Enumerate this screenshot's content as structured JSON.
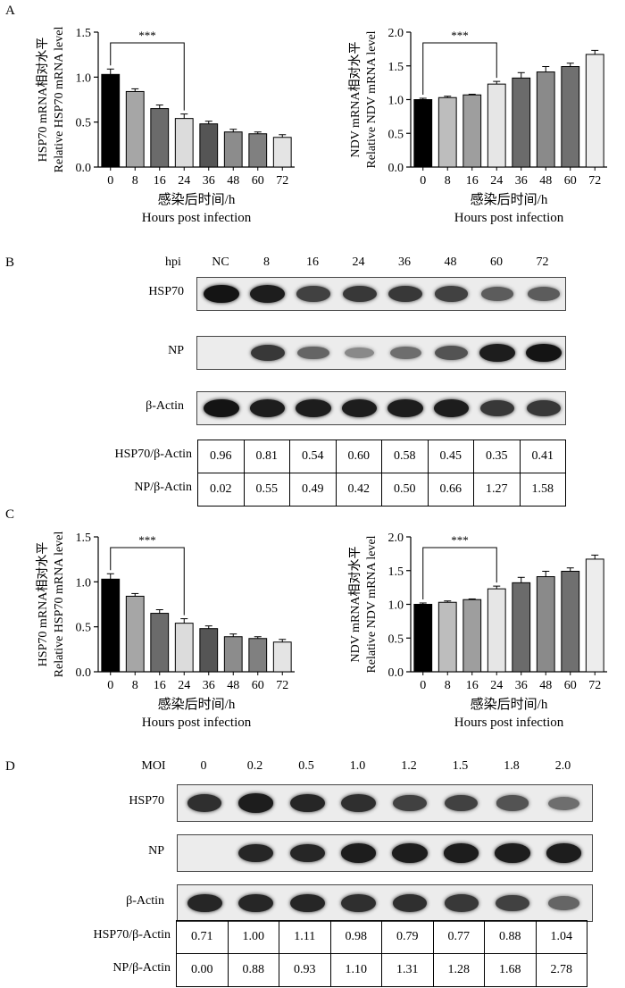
{
  "panels": {
    "A": "A",
    "B": "B",
    "C": "C",
    "D": "D"
  },
  "chart_data": [
    {
      "type": "bar",
      "panel": "A",
      "categories": [
        "0",
        "8",
        "16",
        "24",
        "36",
        "48",
        "60",
        "72"
      ],
      "values": [
        1.03,
        0.84,
        0.65,
        0.54,
        0.48,
        0.39,
        0.37,
        0.33
      ],
      "errors": [
        0.06,
        0.03,
        0.04,
        0.05,
        0.03,
        0.03,
        0.02,
        0.03
      ],
      "ylabel_cn": "HSP70 mRNA相对水平",
      "ylabel_en": "Relative HSP70 mRNA level",
      "xlabel_cn": "感染后时间/h",
      "xlabel_en": "Hours post infection",
      "ylim": [
        0,
        1.5
      ],
      "yticks": [
        "0.0",
        "0.5",
        "1.0",
        "1.5"
      ],
      "significance": "***",
      "colors": [
        "#000000",
        "#a6a6a6",
        "#6b6b6b",
        "#dcdcdc",
        "#555555",
        "#8c8c8c",
        "#808080",
        "#e4e4e4"
      ]
    },
    {
      "type": "bar",
      "panel": "A",
      "categories": [
        "0",
        "8",
        "16",
        "24",
        "36",
        "48",
        "60",
        "72"
      ],
      "values": [
        1.0,
        1.03,
        1.07,
        1.23,
        1.32,
        1.41,
        1.49,
        1.67
      ],
      "errors": [
        0.02,
        0.02,
        0.01,
        0.04,
        0.08,
        0.08,
        0.05,
        0.06
      ],
      "ylabel_cn": "NDV mRNA相对水平",
      "ylabel_en": "Relative NDV mRNA level",
      "xlabel_cn": "感染后时间/h",
      "xlabel_en": "Hours post infection",
      "ylim": [
        0,
        2.0
      ],
      "yticks": [
        "0.0",
        "0.5",
        "1.0",
        "1.5",
        "2.0"
      ],
      "significance": "***",
      "colors": [
        "#000000",
        "#bdbdbd",
        "#9e9e9e",
        "#e6e6e6",
        "#6b6b6b",
        "#8a8a8a",
        "#707070",
        "#ededed"
      ]
    },
    {
      "type": "bar",
      "panel": "C",
      "categories": [
        "0",
        "8",
        "16",
        "24",
        "36",
        "48",
        "60",
        "72"
      ],
      "values": [
        1.03,
        0.84,
        0.65,
        0.54,
        0.48,
        0.39,
        0.37,
        0.33
      ],
      "errors": [
        0.06,
        0.03,
        0.04,
        0.05,
        0.03,
        0.03,
        0.02,
        0.03
      ],
      "ylabel_cn": "HSP70 mRNA相对水平",
      "ylabel_en": "Relative HSP70 mRNA level",
      "xlabel_cn": "感染后时间/h",
      "xlabel_en": "Hours post infection",
      "ylim": [
        0,
        1.5
      ],
      "yticks": [
        "0.0",
        "0.5",
        "1.0",
        "1.5"
      ],
      "significance": "***",
      "colors": [
        "#000000",
        "#a6a6a6",
        "#6b6b6b",
        "#dcdcdc",
        "#555555",
        "#8c8c8c",
        "#808080",
        "#e4e4e4"
      ]
    },
    {
      "type": "bar",
      "panel": "C",
      "categories": [
        "0",
        "8",
        "16",
        "24",
        "36",
        "48",
        "60",
        "72"
      ],
      "values": [
        1.0,
        1.03,
        1.07,
        1.23,
        1.32,
        1.41,
        1.49,
        1.67
      ],
      "errors": [
        0.02,
        0.02,
        0.01,
        0.04,
        0.08,
        0.08,
        0.05,
        0.06
      ],
      "ylabel_cn": "NDV mRNA相对水平",
      "ylabel_en": "Relative NDV mRNA level",
      "xlabel_cn": "感染后时间/h",
      "xlabel_en": "Hours post infection",
      "ylim": [
        0,
        2.0
      ],
      "yticks": [
        "0.0",
        "0.5",
        "1.0",
        "1.5",
        "2.0"
      ],
      "significance": "***",
      "colors": [
        "#000000",
        "#bdbdbd",
        "#9e9e9e",
        "#e6e6e6",
        "#6b6b6b",
        "#8a8a8a",
        "#707070",
        "#ededed"
      ]
    }
  ],
  "blotB": {
    "header_label": "hpi",
    "lanes": [
      "NC",
      "8",
      "16",
      "24",
      "36",
      "48",
      "60",
      "72"
    ],
    "rows": [
      {
        "label": "HSP70",
        "intensity": [
          1.0,
          0.95,
          0.75,
          0.8,
          0.8,
          0.75,
          0.6,
          0.6
        ]
      },
      {
        "label": "NP",
        "intensity": [
          0.0,
          0.8,
          0.55,
          0.35,
          0.5,
          0.65,
          0.95,
          1.0
        ]
      },
      {
        "label": "β-Actin",
        "intensity": [
          1.0,
          0.95,
          0.95,
          0.95,
          0.95,
          0.95,
          0.8,
          0.8
        ]
      }
    ],
    "ratios": [
      {
        "label": "HSP70/β-Actin",
        "values": [
          "0.96",
          "0.81",
          "0.54",
          "0.60",
          "0.58",
          "0.45",
          "0.35",
          "0.41"
        ]
      },
      {
        "label": "NP/β-Actin",
        "values": [
          "0.02",
          "0.55",
          "0.49",
          "0.42",
          "0.50",
          "0.66",
          "1.27",
          "1.58"
        ]
      }
    ]
  },
  "blotD": {
    "header_label": "MOI",
    "lanes": [
      "0",
      "0.2",
      "0.5",
      "1.0",
      "1.2",
      "1.5",
      "1.8",
      "2.0"
    ],
    "rows": [
      {
        "label": "HSP70",
        "intensity": [
          0.85,
          0.95,
          0.9,
          0.85,
          0.75,
          0.75,
          0.65,
          0.5
        ]
      },
      {
        "label": "NP",
        "intensity": [
          0.0,
          0.9,
          0.9,
          0.95,
          0.95,
          0.95,
          0.95,
          0.95
        ]
      },
      {
        "label": "β-Actin",
        "intensity": [
          0.9,
          0.9,
          0.9,
          0.85,
          0.85,
          0.8,
          0.75,
          0.55
        ]
      }
    ],
    "ratios": [
      {
        "label": "HSP70/β-Actin",
        "values": [
          "0.71",
          "1.00",
          "1.11",
          "0.98",
          "0.79",
          "0.77",
          "0.88",
          "1.04"
        ]
      },
      {
        "label": "NP/β-Actin",
        "values": [
          "0.00",
          "0.88",
          "0.93",
          "1.10",
          "1.31",
          "1.28",
          "1.68",
          "2.78"
        ]
      }
    ]
  }
}
